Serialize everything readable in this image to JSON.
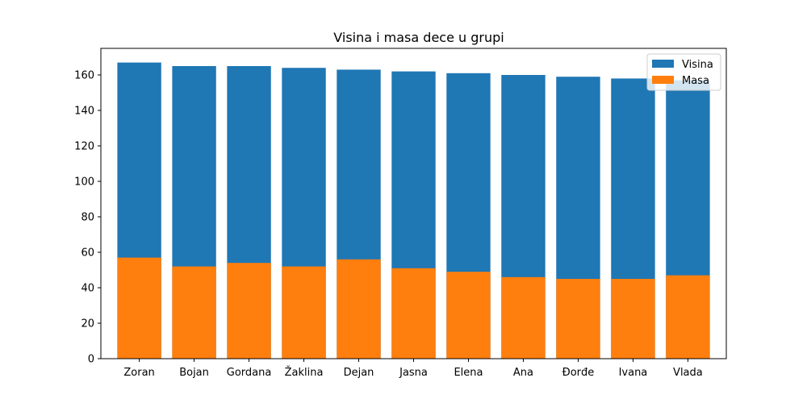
{
  "chart_data": {
    "type": "bar",
    "title": "Visina i masa dece u grupi",
    "xlabel": "",
    "ylabel": "",
    "categories": [
      "Zoran",
      "Bojan",
      "Gordana",
      "Žaklina",
      "Dejan",
      "Jasna",
      "Elena",
      "Ana",
      "Đorđe",
      "Ivana",
      "Vlada"
    ],
    "series": [
      {
        "name": "Visina",
        "color": "#1f77b4",
        "values": [
          167,
          165,
          165,
          164,
          163,
          162,
          161,
          160,
          159,
          158,
          157
        ]
      },
      {
        "name": "Masa",
        "color": "#ff7f0e",
        "values": [
          57,
          52,
          54,
          52,
          56,
          51,
          49,
          46,
          45,
          45,
          47
        ]
      }
    ],
    "ylim": [
      0,
      175
    ],
    "yticks": [
      0,
      20,
      40,
      60,
      80,
      100,
      120,
      140,
      160
    ],
    "grid": false,
    "overlay": true,
    "legend_position": "top-right"
  }
}
